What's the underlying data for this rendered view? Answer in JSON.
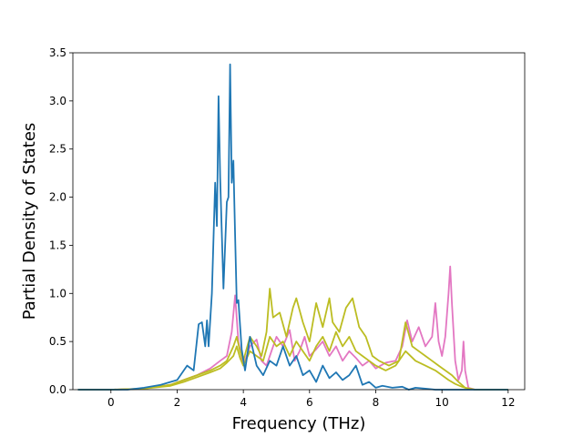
{
  "chart_data": {
    "type": "line",
    "xlabel": "Frequency (THz)",
    "ylabel": "Partial Density of States",
    "xlim": [
      -1.15,
      12.5
    ],
    "ylim": [
      0,
      3.5
    ],
    "xticks": [
      0,
      2,
      4,
      6,
      8,
      10,
      12
    ],
    "xtick_labels": [
      "0",
      "2",
      "4",
      "6",
      "8",
      "10",
      "12"
    ],
    "yticks": [
      0.0,
      0.5,
      1.0,
      1.5,
      2.0,
      2.5,
      3.0,
      3.5
    ],
    "ytick_labels": [
      "0.0",
      "0.5",
      "1.0",
      "1.5",
      "2.0",
      "2.5",
      "3.0",
      "3.5"
    ],
    "grid": false,
    "legend": "none",
    "series": [
      {
        "color": "#e377c2",
        "x": [
          -1.0,
          0.0,
          1.0,
          1.8,
          2.2,
          2.6,
          3.0,
          3.3,
          3.5,
          3.65,
          3.75,
          3.85,
          4.0,
          4.2,
          4.4,
          4.55,
          4.7,
          4.85,
          5.0,
          5.2,
          5.4,
          5.55,
          5.7,
          5.85,
          6.0,
          6.2,
          6.4,
          6.6,
          6.8,
          7.0,
          7.2,
          7.4,
          7.6,
          7.8,
          8.0,
          8.3,
          8.6,
          8.8,
          8.95,
          9.1,
          9.3,
          9.5,
          9.7,
          9.8,
          9.9,
          10.0,
          10.1,
          10.2,
          10.25,
          10.3,
          10.4,
          10.5,
          10.6,
          10.65,
          10.7,
          10.8,
          11.0,
          12.0
        ],
        "values": [
          0,
          0,
          0.01,
          0.05,
          0.1,
          0.15,
          0.22,
          0.3,
          0.35,
          0.6,
          0.98,
          0.5,
          0.25,
          0.45,
          0.52,
          0.3,
          0.25,
          0.4,
          0.55,
          0.45,
          0.62,
          0.3,
          0.4,
          0.55,
          0.35,
          0.42,
          0.5,
          0.35,
          0.45,
          0.3,
          0.4,
          0.33,
          0.25,
          0.3,
          0.22,
          0.28,
          0.3,
          0.45,
          0.72,
          0.5,
          0.65,
          0.45,
          0.55,
          0.9,
          0.5,
          0.35,
          0.55,
          1.0,
          1.28,
          0.9,
          0.3,
          0.1,
          0.2,
          0.5,
          0.2,
          0.02,
          0,
          0
        ]
      },
      {
        "color": "#bcbd22",
        "x": [
          -1.0,
          0.0,
          1.0,
          1.8,
          2.2,
          2.6,
          3.0,
          3.3,
          3.5,
          3.7,
          3.8,
          3.9,
          4.0,
          4.2,
          4.4,
          4.55,
          4.7,
          4.8,
          4.9,
          5.1,
          5.3,
          5.5,
          5.6,
          5.8,
          6.0,
          6.2,
          6.4,
          6.6,
          6.7,
          6.9,
          7.1,
          7.3,
          7.5,
          7.7,
          7.9,
          8.1,
          8.4,
          8.7,
          8.9,
          9.1,
          9.3,
          9.5,
          9.7,
          9.9,
          10.1,
          10.3,
          10.5,
          10.7,
          11.0,
          12.0
        ],
        "values": [
          0,
          0,
          0.01,
          0.05,
          0.1,
          0.15,
          0.2,
          0.25,
          0.3,
          0.45,
          0.55,
          0.4,
          0.3,
          0.55,
          0.45,
          0.35,
          0.6,
          1.05,
          0.75,
          0.8,
          0.55,
          0.85,
          0.95,
          0.7,
          0.5,
          0.9,
          0.65,
          0.95,
          0.7,
          0.6,
          0.85,
          0.95,
          0.65,
          0.55,
          0.35,
          0.3,
          0.25,
          0.3,
          0.7,
          0.45,
          0.4,
          0.35,
          0.3,
          0.25,
          0.2,
          0.15,
          0.08,
          0.02,
          0,
          0
        ]
      },
      {
        "color": "#bcbd22",
        "x": [
          -1.0,
          0.0,
          1.0,
          1.8,
          2.2,
          2.6,
          3.0,
          3.3,
          3.5,
          3.7,
          3.8,
          3.9,
          4.0,
          4.2,
          4.4,
          4.6,
          4.8,
          5.0,
          5.2,
          5.4,
          5.6,
          5.8,
          6.0,
          6.2,
          6.4,
          6.6,
          6.8,
          7.0,
          7.2,
          7.4,
          7.6,
          7.8,
          8.0,
          8.3,
          8.6,
          8.9,
          9.2,
          9.5,
          9.8,
          10.0,
          10.2,
          10.4,
          10.6,
          10.8,
          11.0,
          12.0
        ],
        "values": [
          0,
          0,
          0.01,
          0.04,
          0.08,
          0.13,
          0.18,
          0.22,
          0.28,
          0.35,
          0.45,
          0.33,
          0.25,
          0.4,
          0.35,
          0.3,
          0.55,
          0.45,
          0.5,
          0.35,
          0.5,
          0.4,
          0.3,
          0.45,
          0.55,
          0.4,
          0.6,
          0.45,
          0.55,
          0.4,
          0.35,
          0.3,
          0.25,
          0.2,
          0.25,
          0.4,
          0.3,
          0.25,
          0.2,
          0.15,
          0.1,
          0.06,
          0.03,
          0.01,
          0,
          0
        ]
      },
      {
        "color": "#1f77b4",
        "x": [
          -1.0,
          0.0,
          0.5,
          1.0,
          1.5,
          2.0,
          2.3,
          2.5,
          2.65,
          2.75,
          2.85,
          2.9,
          2.95,
          3.05,
          3.15,
          3.2,
          3.25,
          3.3,
          3.4,
          3.5,
          3.55,
          3.6,
          3.65,
          3.7,
          3.75,
          3.8,
          3.85,
          3.95,
          4.05,
          4.2,
          4.4,
          4.6,
          4.8,
          5.0,
          5.2,
          5.4,
          5.6,
          5.8,
          6.0,
          6.2,
          6.4,
          6.6,
          6.8,
          7.0,
          7.2,
          7.4,
          7.6,
          7.8,
          8.0,
          8.2,
          8.5,
          8.8,
          9.0,
          9.2,
          9.5,
          9.8,
          10.0,
          10.2,
          10.5,
          11.0,
          12.0
        ],
        "values": [
          0,
          0,
          0,
          0.02,
          0.05,
          0.1,
          0.25,
          0.2,
          0.68,
          0.7,
          0.45,
          0.72,
          0.45,
          1.0,
          2.15,
          1.7,
          3.05,
          2.2,
          1.05,
          1.95,
          2.0,
          3.38,
          2.15,
          2.38,
          1.6,
          0.9,
          0.93,
          0.42,
          0.2,
          0.55,
          0.25,
          0.15,
          0.3,
          0.25,
          0.45,
          0.25,
          0.35,
          0.15,
          0.2,
          0.08,
          0.25,
          0.12,
          0.18,
          0.1,
          0.15,
          0.25,
          0.05,
          0.08,
          0.02,
          0.04,
          0.02,
          0.03,
          0.0,
          0.02,
          0.01,
          0.0,
          0.0,
          0.0,
          0,
          0,
          0
        ]
      }
    ]
  }
}
